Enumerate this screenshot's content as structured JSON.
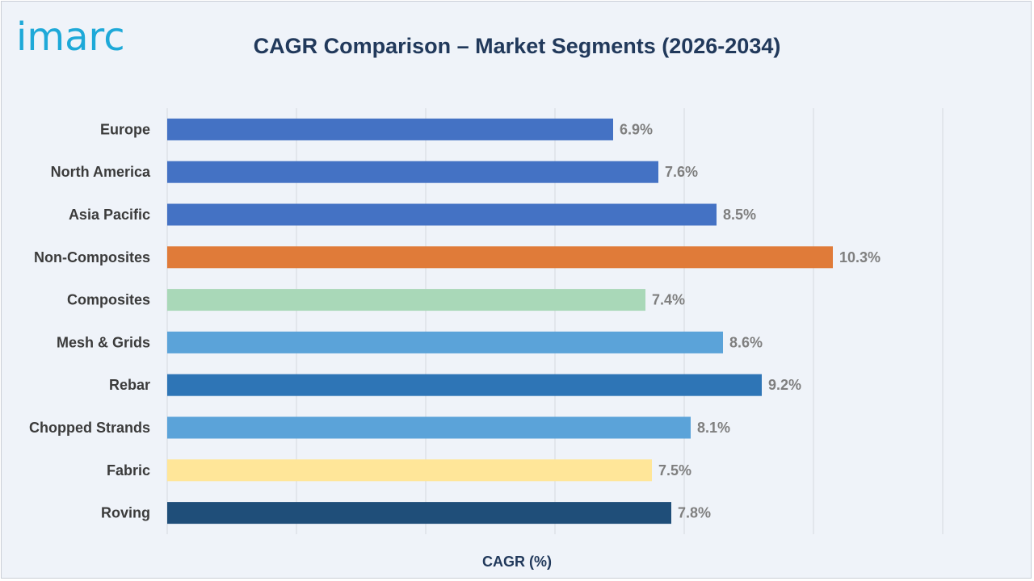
{
  "header": {
    "logo_text": "imarc",
    "title": "CAGR Comparison – Market Segments (2026-2034)"
  },
  "colors": {
    "title": "#21395b",
    "logo": "#1ea9d8",
    "label": "#3b3b3b",
    "value_label": "#7f7f7f",
    "grid": "#d4d8de"
  },
  "chart_data": {
    "type": "bar",
    "orientation": "horizontal",
    "title": "CAGR Comparison – Market Segments (2026-2034)",
    "xlabel": "CAGR (%)",
    "ylabel": "",
    "xlim": [
      0,
      12
    ],
    "grid": true,
    "value_suffix": "%",
    "categories": [
      "Europe",
      "North America",
      "Asia Pacific",
      "Non-Composites",
      "Composites",
      "Mesh & Grids",
      "Rebar",
      "Chopped Strands",
      "Fabric",
      "Roving"
    ],
    "values": [
      6.9,
      7.6,
      8.5,
      10.3,
      7.4,
      8.6,
      9.2,
      8.1,
      7.5,
      7.8
    ],
    "value_labels": [
      "6.9%",
      "7.6%",
      "8.5%",
      "10.3%",
      "7.4%",
      "8.6%",
      "9.2%",
      "8.1%",
      "7.5%",
      "7.8%"
    ],
    "bar_colors": [
      "#4472c4",
      "#4472c4",
      "#4472c4",
      "#e07b39",
      "#a9d8b8",
      "#5ba3d9",
      "#2e75b6",
      "#5ba3d9",
      "#ffe699",
      "#1f4e79"
    ]
  }
}
